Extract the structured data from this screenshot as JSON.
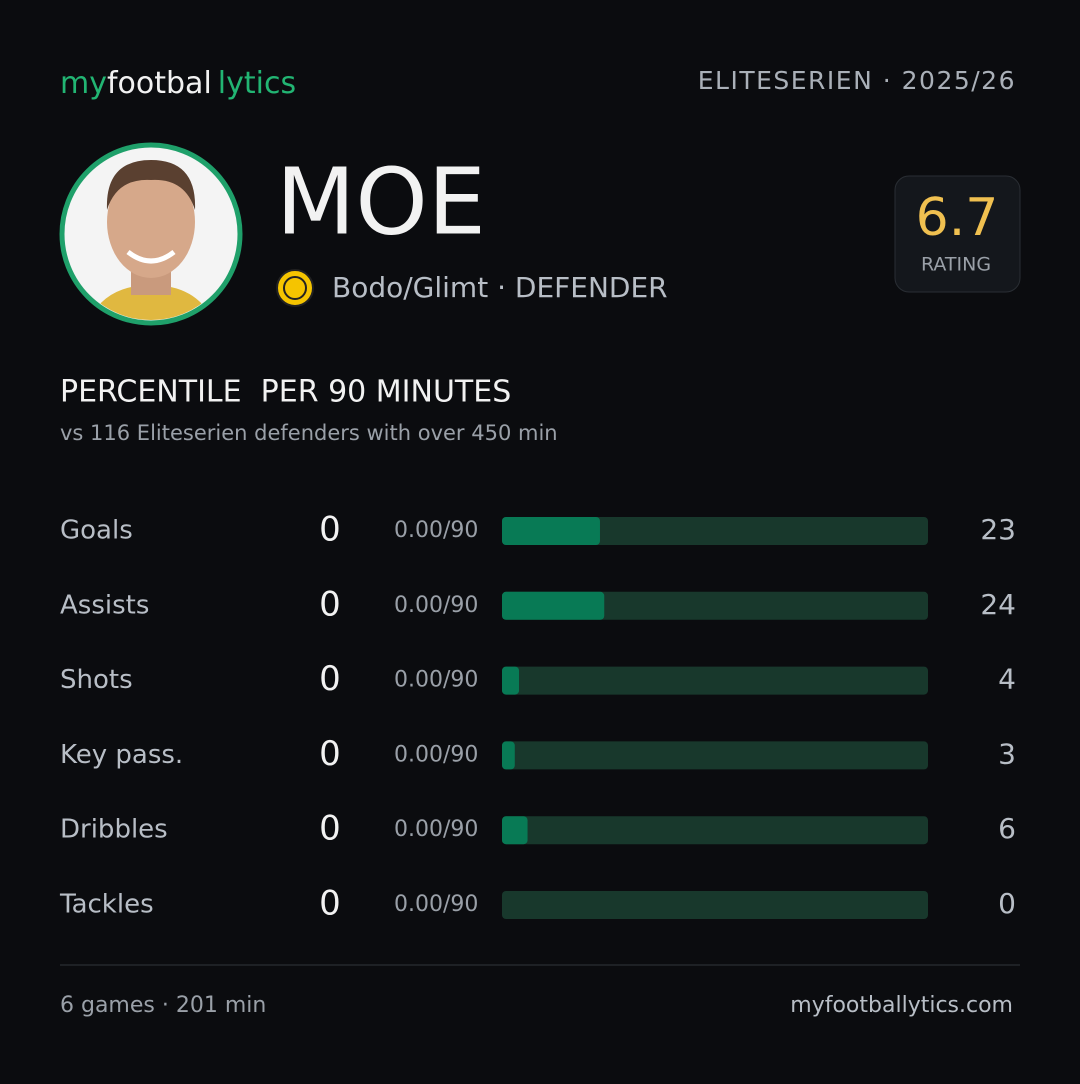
{
  "header": {
    "brand": [
      "my",
      "footbal",
      "lytics"
    ],
    "league": "ELITESERIEN · 2025/26"
  },
  "player": {
    "name": "MOE",
    "club_line": "Bodo/Glimt · DEFENDER",
    "rating": "6.7",
    "rating_label": "RATING"
  },
  "section": {
    "title": "PERCENTILE  PER 90 MINUTES",
    "subtitle": "vs 116 Eliteserien defenders with over 450 min"
  },
  "rows": [
    {
      "label": "Goals",
      "count": "0",
      "per90": "0.00/90",
      "percentile": 23
    },
    {
      "label": "Assists",
      "count": "0",
      "per90": "0.00/90",
      "percentile": 24
    },
    {
      "label": "Shots",
      "count": "0",
      "per90": "0.00/90",
      "percentile": 4
    },
    {
      "label": "Key pass.",
      "count": "0",
      "per90": "0.00/90",
      "percentile": 3
    },
    {
      "label": "Dribbles",
      "count": "0",
      "per90": "0.00/90",
      "percentile": 6
    },
    {
      "label": "Tackles",
      "count": "0",
      "per90": "0.00/90",
      "percentile": 0
    }
  ],
  "footer": {
    "games": "6 games · 201 min",
    "site": "myfootballytics.com"
  }
}
